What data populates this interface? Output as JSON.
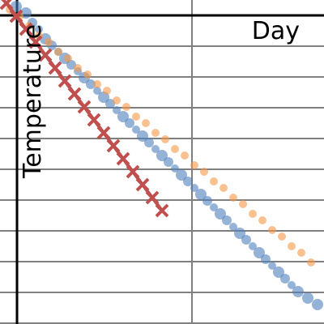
{
  "colors": {
    "background": "#ffffff",
    "grid": "#7f7f7f",
    "axis": "#000000",
    "series_blue": "#4f81bd",
    "series_orange": "#f79646",
    "series_red": "#c0504d"
  },
  "chart_data": {
    "type": "scatter",
    "title": "",
    "xlabel": "Day",
    "ylabel": "Temperature",
    "xlim": [
      0,
      100
    ],
    "ylim": [
      0,
      100
    ],
    "grid": true,
    "legend": "none",
    "series": [
      {
        "marker": "circle",
        "color": "#4f81bd",
        "points": [
          [
            5,
            98
          ],
          [
            8,
            96
          ],
          [
            10,
            93
          ],
          [
            12,
            91
          ],
          [
            14,
            88
          ],
          [
            16,
            86
          ],
          [
            18,
            84
          ],
          [
            20,
            82
          ],
          [
            22,
            80
          ],
          [
            24,
            78
          ],
          [
            26,
            76
          ],
          [
            28,
            74
          ],
          [
            30,
            72
          ],
          [
            32,
            70
          ],
          [
            34,
            68
          ],
          [
            36,
            66
          ],
          [
            38,
            64
          ],
          [
            40,
            62
          ],
          [
            42,
            60
          ],
          [
            44,
            58
          ],
          [
            46,
            56
          ],
          [
            48,
            54
          ],
          [
            50,
            52
          ],
          [
            52,
            50
          ],
          [
            54,
            48
          ],
          [
            56,
            46
          ],
          [
            58,
            44
          ],
          [
            60,
            42
          ],
          [
            62,
            40
          ],
          [
            64,
            38
          ],
          [
            66,
            36
          ],
          [
            68,
            34
          ],
          [
            70,
            32
          ],
          [
            72,
            30
          ],
          [
            74,
            28
          ],
          [
            76,
            26
          ],
          [
            78,
            24
          ],
          [
            80,
            22
          ],
          [
            82,
            20
          ],
          [
            84,
            18
          ],
          [
            86,
            16
          ],
          [
            88,
            14
          ],
          [
            90,
            12
          ],
          [
            92,
            10
          ],
          [
            95,
            8
          ],
          [
            98,
            6
          ]
        ]
      },
      {
        "marker": "circle",
        "color": "#f79646",
        "points": [
          [
            3,
            97
          ],
          [
            6,
            95
          ],
          [
            9,
            92
          ],
          [
            12,
            89
          ],
          [
            15,
            87
          ],
          [
            18,
            84
          ],
          [
            21,
            82
          ],
          [
            24,
            79
          ],
          [
            27,
            77
          ],
          [
            30,
            74
          ],
          [
            33,
            72
          ],
          [
            36,
            69
          ],
          [
            39,
            67
          ],
          [
            42,
            64
          ],
          [
            45,
            62
          ],
          [
            48,
            59
          ],
          [
            51,
            57
          ],
          [
            54,
            54
          ],
          [
            57,
            52
          ],
          [
            60,
            49
          ],
          [
            63,
            47
          ],
          [
            66,
            44
          ],
          [
            69,
            42
          ],
          [
            72,
            39
          ],
          [
            75,
            37
          ],
          [
            78,
            34
          ],
          [
            81,
            32
          ],
          [
            84,
            29
          ],
          [
            87,
            27
          ],
          [
            90,
            24
          ],
          [
            93,
            22
          ],
          [
            96,
            19
          ]
        ]
      },
      {
        "marker": "x",
        "color": "#c0504d",
        "points": [
          [
            2,
            99
          ],
          [
            5,
            95
          ],
          [
            8,
            91
          ],
          [
            11,
            87
          ],
          [
            14,
            83
          ],
          [
            17,
            79
          ],
          [
            20,
            75
          ],
          [
            23,
            71
          ],
          [
            26,
            67
          ],
          [
            29,
            63
          ],
          [
            32,
            59
          ],
          [
            35,
            55
          ],
          [
            38,
            51
          ],
          [
            41,
            47
          ],
          [
            44,
            43
          ],
          [
            47,
            39
          ],
          [
            50,
            35
          ]
        ]
      }
    ]
  }
}
